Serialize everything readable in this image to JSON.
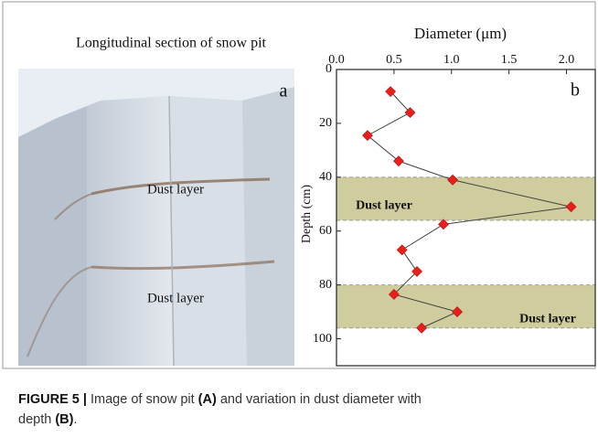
{
  "panel_a": {
    "title": "Longitudinal section of snow pit",
    "letter": "a",
    "layer_labels": [
      "Dust layer",
      "Dust layer"
    ]
  },
  "chart_data": {
    "type": "line",
    "letter": "b",
    "x_label": "Diameter (μm)",
    "y_label": "Depth (cm)",
    "x": [
      0.47,
      0.64,
      0.27,
      0.54,
      1.01,
      2.04,
      0.93,
      0.57,
      0.7,
      0.5,
      1.05,
      0.74
    ],
    "values": [
      8.2,
      16,
      24.5,
      34,
      41,
      51,
      57.5,
      67,
      75,
      83.5,
      90,
      96
    ],
    "marker_color": "#e8201b",
    "line_color": "#444444",
    "xlim": [
      0,
      2.25
    ],
    "xticks": [
      {
        "value": 0,
        "label": "0.0"
      },
      0.5,
      {
        "value": 1,
        "label": "1.0"
      },
      1.5,
      {
        "value": 2,
        "label": "2.0"
      }
    ],
    "ylim": [
      0,
      110
    ],
    "yticks": [
      0,
      20,
      40,
      60,
      80,
      100
    ],
    "y_inverted": true,
    "bands": [
      {
        "from": 40,
        "to": 56,
        "label": "Dust layer"
      },
      {
        "from": 80,
        "to": 96,
        "label": "Dust layer"
      }
    ],
    "band_color": "#cfcc9e"
  },
  "caption": {
    "label": "FIGURE 5 |",
    "text_1": " Image of snow pit ",
    "ref_a": "(A)",
    "text_2": " and variation in dust diameter with",
    "text_3": "depth ",
    "ref_b": "(B)",
    "text_4": "."
  }
}
